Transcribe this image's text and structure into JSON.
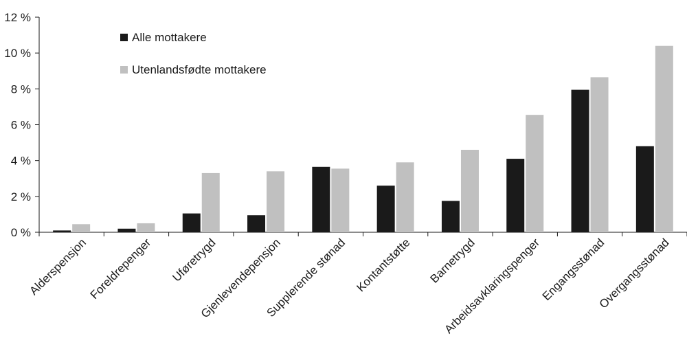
{
  "chart_data": {
    "type": "bar",
    "title": "",
    "xlabel": "",
    "ylabel": "",
    "ylim": [
      0,
      12
    ],
    "yticks": [
      "0 %",
      "2 %",
      "4 %",
      "6 %",
      "8 %",
      "10 %",
      "12 %"
    ],
    "ytick_values": [
      0,
      2,
      4,
      6,
      8,
      10,
      12
    ],
    "grid": false,
    "legend_position": "top-left",
    "categories": [
      "Alderspensjon",
      "Foreldrepenger",
      "Uføretrygd",
      "Gjenlevendepensjon",
      "Supplerende stønad",
      "Kontantstøtte",
      "Barnetrygd",
      "Arbeidsavklaringspenger",
      "Engangsstønad",
      "Overgangsstønad"
    ],
    "series": [
      {
        "name": "Alle mottakere",
        "color": "#1a1a1a",
        "values": [
          0.1,
          0.2,
          1.05,
          0.95,
          3.65,
          2.6,
          1.75,
          4.1,
          7.95,
          4.8
        ]
      },
      {
        "name": "Utenlandsfødte mottakere",
        "color": "#c0c0c0",
        "values": [
          0.45,
          0.5,
          3.3,
          3.4,
          3.55,
          3.9,
          4.6,
          6.55,
          8.65,
          10.4
        ]
      }
    ]
  }
}
